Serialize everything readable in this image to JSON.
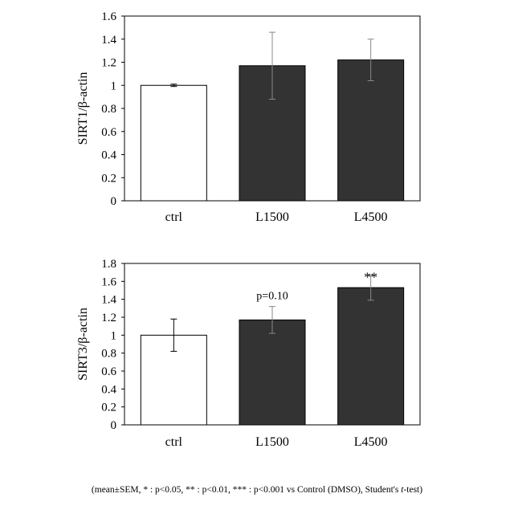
{
  "chart_data": [
    {
      "type": "bar",
      "categories": [
        "ctrl",
        "L1500",
        "L4500"
      ],
      "values": [
        1.0,
        1.17,
        1.22
      ],
      "errors": [
        0.01,
        0.29,
        0.18
      ],
      "bar_colors": [
        "#ffffff",
        "#333333",
        "#333333"
      ],
      "ylabel": "SIRT1/β-actin",
      "ylim": [
        0,
        1.6
      ],
      "yticks": [
        "0",
        "0.2",
        "0.4",
        "0.6",
        "0.8",
        "1",
        "1.2",
        "1.4",
        "1.6"
      ],
      "annotations": [],
      "grid": false
    },
    {
      "type": "bar",
      "categories": [
        "ctrl",
        "L1500",
        "L4500"
      ],
      "values": [
        1.0,
        1.17,
        1.53
      ],
      "errors": [
        0.18,
        0.15,
        0.14
      ],
      "bar_colors": [
        "#ffffff",
        "#333333",
        "#333333"
      ],
      "ylabel": "SIRT3/β-actin",
      "ylim": [
        0,
        1.8
      ],
      "yticks": [
        "0",
        "0.2",
        "0.4",
        "0.6",
        "0.8",
        "1",
        "1.2",
        "1.4",
        "1.6",
        "1.8"
      ],
      "annotations": [
        {
          "category_index": 1,
          "text": "p=0.10"
        },
        {
          "category_index": 2,
          "text": "**"
        }
      ],
      "grid": false
    }
  ],
  "footnote": {
    "before": "(mean±SEM,    * : p<0.05, ** : p<0.01, *** : p<0.001 vs Control (DMSO), Student's ",
    "italic": "t",
    "after": "-test)"
  }
}
